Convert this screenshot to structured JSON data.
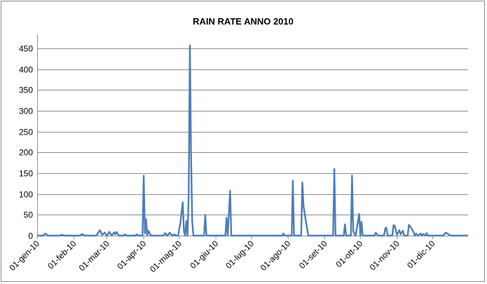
{
  "chart_data": {
    "type": "line",
    "title": "RAIN RATE ANNO 2010",
    "xlabel": "",
    "ylabel": "",
    "ylim": [
      0,
      470
    ],
    "yticks": [
      0,
      50,
      100,
      150,
      200,
      250,
      300,
      350,
      400,
      450
    ],
    "ytick_labels": [
      "0",
      "50",
      "100",
      "150",
      "200",
      "250",
      "300",
      "350",
      "400",
      "450"
    ],
    "xlim": [
      "2010-01-01",
      "2010-12-31"
    ],
    "xticks": [
      "2010-01-01",
      "2010-02-01",
      "2010-03-01",
      "2010-04-01",
      "2010-05-01",
      "2010-06-01",
      "2010-07-01",
      "2010-08-01",
      "2010-09-01",
      "2010-10-01",
      "2010-11-01",
      "2010-12-01"
    ],
    "xtick_labels": [
      "01-gen-10",
      "01-feb-10",
      "01-mar-10",
      "01-apr-10",
      "01-mag-10",
      "01-giu-10",
      "01-lug-10",
      "01-ago-10",
      "01-set-10",
      "01-ott-10",
      "01-nov-10",
      "01-dic-10"
    ],
    "grid": "horizontal",
    "legend": "none",
    "line_color": "#4a7ebb",
    "series": [
      {
        "points": [
          [
            "2010-01-01",
            0
          ],
          [
            "2010-01-06",
            0
          ],
          [
            "2010-01-08",
            5
          ],
          [
            "2010-01-10",
            0
          ],
          [
            "2010-01-20",
            0
          ],
          [
            "2010-01-22",
            2
          ],
          [
            "2010-01-24",
            0
          ],
          [
            "2010-02-06",
            0
          ],
          [
            "2010-02-08",
            4
          ],
          [
            "2010-02-10",
            0
          ],
          [
            "2010-02-20",
            0
          ],
          [
            "2010-02-23",
            13
          ],
          [
            "2010-02-25",
            2
          ],
          [
            "2010-02-27",
            7
          ],
          [
            "2010-03-01",
            0
          ],
          [
            "2010-03-03",
            9
          ],
          [
            "2010-03-05",
            0
          ],
          [
            "2010-03-07",
            8
          ],
          [
            "2010-03-08",
            3
          ],
          [
            "2010-03-09",
            9
          ],
          [
            "2010-03-11",
            0
          ],
          [
            "2010-03-15",
            0
          ],
          [
            "2010-03-16",
            3
          ],
          [
            "2010-03-18",
            0
          ],
          [
            "2010-03-25",
            0
          ],
          [
            "2010-03-26",
            3
          ],
          [
            "2010-03-28",
            0
          ],
          [
            "2010-03-31",
            0
          ],
          [
            "2010-04-01",
            144
          ],
          [
            "2010-04-02",
            5
          ],
          [
            "2010-04-03",
            40
          ],
          [
            "2010-04-04",
            0
          ],
          [
            "2010-04-05",
            12
          ],
          [
            "2010-04-07",
            0
          ],
          [
            "2010-04-18",
            0
          ],
          [
            "2010-04-19",
            6
          ],
          [
            "2010-04-21",
            0
          ],
          [
            "2010-04-23",
            7
          ],
          [
            "2010-04-25",
            0
          ],
          [
            "2010-04-27",
            3
          ],
          [
            "2010-04-28",
            0
          ],
          [
            "2010-04-30",
            0
          ],
          [
            "2010-05-02",
            30
          ],
          [
            "2010-05-04",
            80
          ],
          [
            "2010-05-05",
            10
          ],
          [
            "2010-05-06",
            0
          ],
          [
            "2010-05-07",
            35
          ],
          [
            "2010-05-08",
            0
          ],
          [
            "2010-05-09",
            100
          ],
          [
            "2010-05-10",
            457
          ],
          [
            "2010-05-11",
            200
          ],
          [
            "2010-05-12",
            35
          ],
          [
            "2010-05-13",
            0
          ],
          [
            "2010-05-22",
            0
          ],
          [
            "2010-05-23",
            50
          ],
          [
            "2010-05-24",
            0
          ],
          [
            "2010-06-09",
            0
          ],
          [
            "2010-06-10",
            43
          ],
          [
            "2010-06-11",
            0
          ],
          [
            "2010-06-13",
            108
          ],
          [
            "2010-06-14",
            0
          ],
          [
            "2010-07-27",
            0
          ],
          [
            "2010-07-28",
            5
          ],
          [
            "2010-07-29",
            0
          ],
          [
            "2010-08-04",
            0
          ],
          [
            "2010-08-05",
            132
          ],
          [
            "2010-08-06",
            0
          ],
          [
            "2010-08-12",
            0
          ],
          [
            "2010-08-13",
            128
          ],
          [
            "2010-08-14",
            70
          ],
          [
            "2010-08-16",
            35
          ],
          [
            "2010-08-18",
            0
          ],
          [
            "2010-09-08",
            0
          ],
          [
            "2010-09-09",
            160
          ],
          [
            "2010-09-10",
            0
          ],
          [
            "2010-09-17",
            0
          ],
          [
            "2010-09-18",
            27
          ],
          [
            "2010-09-19",
            0
          ],
          [
            "2010-09-23",
            0
          ],
          [
            "2010-09-24",
            144
          ],
          [
            "2010-09-25",
            10
          ],
          [
            "2010-09-27",
            0
          ],
          [
            "2010-09-30",
            52
          ],
          [
            "2010-10-01",
            0
          ],
          [
            "2010-10-02",
            33
          ],
          [
            "2010-10-03",
            0
          ],
          [
            "2010-10-13",
            0
          ],
          [
            "2010-10-14",
            7
          ],
          [
            "2010-10-16",
            0
          ],
          [
            "2010-10-21",
            0
          ],
          [
            "2010-10-22",
            17
          ],
          [
            "2010-10-23",
            19
          ],
          [
            "2010-10-24",
            0
          ],
          [
            "2010-10-28",
            0
          ],
          [
            "2010-10-29",
            25
          ],
          [
            "2010-10-30",
            24
          ],
          [
            "2010-10-31",
            12
          ],
          [
            "2010-11-01",
            2
          ],
          [
            "2010-11-03",
            13
          ],
          [
            "2010-11-04",
            3
          ],
          [
            "2010-11-06",
            12
          ],
          [
            "2010-11-07",
            0
          ],
          [
            "2010-11-10",
            0
          ],
          [
            "2010-11-11",
            26
          ],
          [
            "2010-11-13",
            18
          ],
          [
            "2010-11-15",
            8
          ],
          [
            "2010-11-16",
            0
          ],
          [
            "2010-11-17",
            5
          ],
          [
            "2010-11-19",
            0
          ],
          [
            "2010-11-21",
            5
          ],
          [
            "2010-11-22",
            0
          ],
          [
            "2010-11-23",
            4
          ],
          [
            "2010-11-25",
            0
          ],
          [
            "2010-11-26",
            6
          ],
          [
            "2010-11-27",
            0
          ],
          [
            "2010-12-10",
            0
          ],
          [
            "2010-12-12",
            7
          ],
          [
            "2010-12-14",
            4
          ],
          [
            "2010-12-16",
            0
          ],
          [
            "2010-12-31",
            0
          ]
        ]
      }
    ]
  }
}
